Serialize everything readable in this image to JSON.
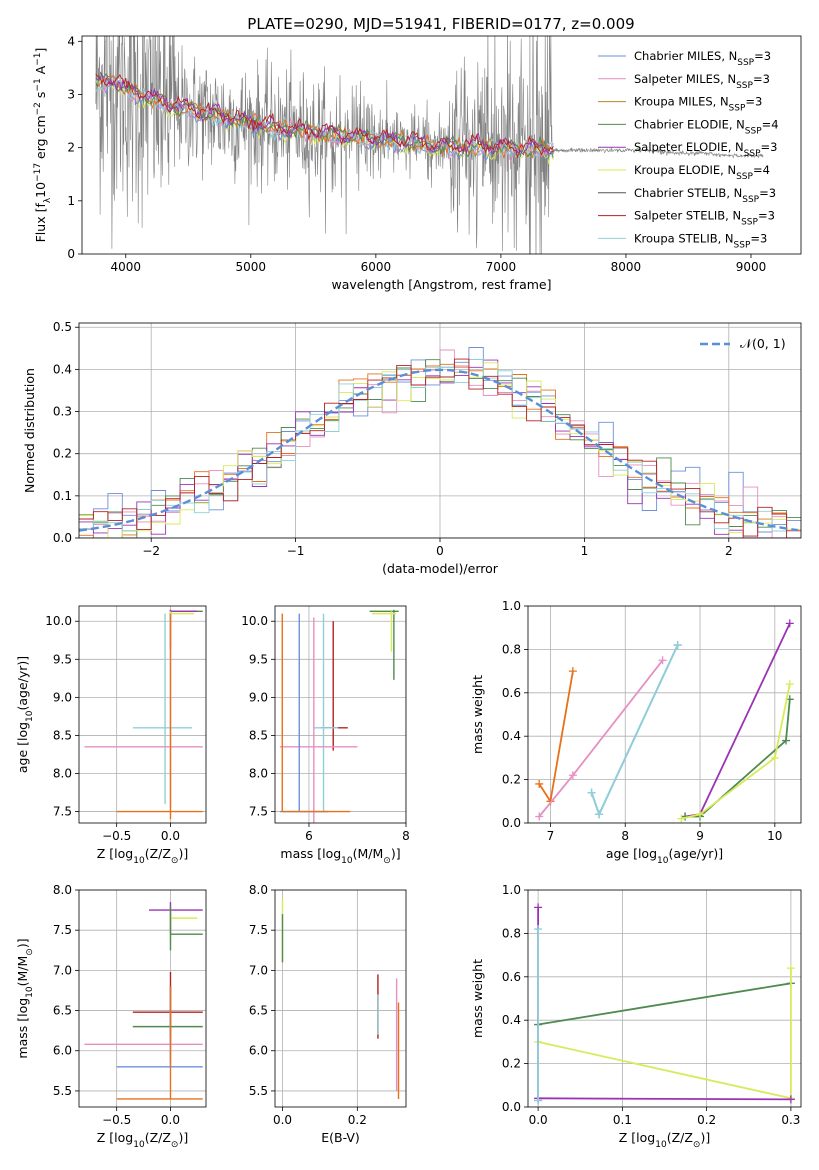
{
  "title": "PLATE=0290, MJD=51941, FIBERID=0177, z=0.009",
  "colors": {
    "chabrier_miles": "#6f8fdc",
    "salpeter_miles": "#e68fc2",
    "kroupa_miles": "#b8862b",
    "chabrier_elodie": "#4f8a4f",
    "salpeter_elodie": "#9a34b4",
    "kroupa_elodie": "#d8ea5a",
    "chabrier_stelib": "#555555",
    "salpeter_stelib": "#b52020",
    "kroupa_stelib": "#8fd0d8",
    "data": "#808080",
    "orange": "#e8701a",
    "gaussian": "#5a8fd8"
  },
  "chart_data": [
    {
      "id": "spectrum",
      "type": "line",
      "title": "PLATE=0290, MJD=51941, FIBERID=0177, z=0.009",
      "xlabel": "wavelength [Angstrom, rest frame]",
      "ylabel_parts": {
        "a": "Flux [f",
        "sub": "λ",
        "b": "10",
        "sup1": "−17",
        "c": " erg cm",
        "sup2": "−2",
        "d": " s",
        "sup3": "−1",
        "e": " A",
        "sup4": "−1",
        "f": "]"
      },
      "xlim": [
        3650,
        9400
      ],
      "ylim": [
        0,
        4.1
      ],
      "xticks": [
        4000,
        5000,
        6000,
        7000,
        8000,
        9000
      ],
      "yticks": [
        0,
        1,
        2,
        3,
        4
      ],
      "legend_placement": "top-right",
      "legend": [
        {
          "label": "Chabrier MILES, N",
          "sub": "SSP",
          "suffix": "=3",
          "color_key": "chabrier_miles"
        },
        {
          "label": "Salpeter MILES, N",
          "sub": "SSP",
          "suffix": "=3",
          "color_key": "salpeter_miles"
        },
        {
          "label": "Kroupa MILES, N",
          "sub": "SSP",
          "suffix": "=3",
          "color_key": "kroupa_miles"
        },
        {
          "label": "Chabrier ELODIE, N",
          "sub": "SSP",
          "suffix": "=4",
          "color_key": "chabrier_elodie"
        },
        {
          "label": "Salpeter ELODIE, N",
          "sub": "SSP",
          "suffix": "=3",
          "color_key": "salpeter_elodie"
        },
        {
          "label": "Kroupa ELODIE, N",
          "sub": "SSP",
          "suffix": "=4",
          "color_key": "kroupa_elodie"
        },
        {
          "label": "Chabrier STELIB, N",
          "sub": "SSP",
          "suffix": "=3",
          "color_key": "chabrier_stelib"
        },
        {
          "label": "Salpeter STELIB, N",
          "sub": "SSP",
          "suffix": "=3",
          "color_key": "salpeter_stelib"
        },
        {
          "label": "Kroupa STELIB, N",
          "sub": "SSP",
          "suffix": "=3",
          "color_key": "kroupa_stelib"
        }
      ],
      "continuum": {
        "x": [
          3760,
          3900,
          4000,
          4200,
          4400,
          4600,
          4800,
          5000,
          5200,
          5400,
          5600,
          5800,
          6000,
          6200,
          6400,
          6600,
          6800,
          7000,
          7200,
          7400,
          7600,
          7800,
          8000,
          8200,
          8400,
          8600,
          8800,
          9000,
          9100
        ],
        "y": [
          3.2,
          3.25,
          3.1,
          2.9,
          2.75,
          2.65,
          2.55,
          2.45,
          2.35,
          2.3,
          2.25,
          2.2,
          2.15,
          2.1,
          2.05,
          2.0,
          2.0,
          2.0,
          1.95,
          1.95,
          1.95,
          1.95,
          1.95,
          1.95,
          1.9,
          1.9,
          1.85,
          1.85,
          1.85
        ]
      },
      "noisy_range": [
        3760,
        7420
      ]
    },
    {
      "id": "residuals",
      "type": "line",
      "xlabel": "(data-model)/error",
      "ylabel": "Normed distribution",
      "xlim": [
        -2.5,
        2.5
      ],
      "ylim": [
        0,
        0.51
      ],
      "xticks": [
        -2,
        -1,
        0,
        1,
        2
      ],
      "yticks": [
        0.0,
        0.1,
        0.2,
        0.3,
        0.4,
        0.5
      ],
      "legend_label": "𝒩(0, 1)",
      "legend_placement": "top-right",
      "bin_width": 0.1
    },
    {
      "id": "age_vs_Z",
      "type": "scatter",
      "xlabel_parts": {
        "a": "Z [log",
        "sub": "10",
        "b": "(Z/Z",
        "sub2": "⊙",
        "c": ")]"
      },
      "ylabel_parts": {
        "a": "age  [log",
        "sub": "10",
        "b": "(age/yr)]"
      },
      "xlim": [
        -0.85,
        0.33
      ],
      "ylim": [
        7.35,
        10.2
      ],
      "xticks": [
        -0.5,
        0.0
      ],
      "yticks": [
        7.5,
        8.0,
        8.5,
        9.0,
        9.5,
        10.0
      ],
      "errorbars": [
        {
          "x": 0.0,
          "y": 10.13,
          "xerr": [
            0.0,
            0.3
          ],
          "yerr": [
            0.45,
            0.02
          ],
          "color_key": "chabrier_elodie"
        },
        {
          "x": 0.0,
          "y": 10.13,
          "xerr": [
            0.0,
            0.25
          ],
          "yerr": [
            0.5,
            0.02
          ],
          "color_key": "salpeter_elodie"
        },
        {
          "x": 0.0,
          "y": 10.1,
          "xerr": [
            0.0,
            0.22
          ],
          "yerr": [
            0.4,
            0.03
          ],
          "color_key": "kroupa_elodie"
        },
        {
          "x": -0.05,
          "y": 8.6,
          "xerr": [
            0.3,
            0.25
          ],
          "yerr": [
            1.0,
            1.5
          ],
          "color_key": "kroupa_stelib"
        },
        {
          "x": 0.0,
          "y": 8.35,
          "xerr": [
            0.8,
            0.3
          ],
          "yerr": [
            0.8,
            1.7
          ],
          "color_key": "salpeter_miles"
        },
        {
          "x": 0.0,
          "y": 7.5,
          "xerr": [
            0.5,
            0.3
          ],
          "yerr": [
            0.1,
            2.6
          ],
          "color_key": "orange"
        }
      ]
    },
    {
      "id": "age_vs_mass",
      "type": "scatter",
      "xlabel_parts": {
        "a": "mass [log",
        "sub": "10",
        "b": "(M/M",
        "sub2": "⊙",
        "c": ")]"
      },
      "xlim": [
        5.3,
        8.0
      ],
      "ylim": [
        7.35,
        10.2
      ],
      "xticks": [
        6,
        8
      ],
      "yticks": [
        7.5,
        8.0,
        8.5,
        9.0,
        9.5,
        10.0
      ],
      "errorbars": [
        {
          "x": 7.75,
          "y": 10.13,
          "xerr": [
            0.5,
            0.1
          ],
          "yerr": [
            0.9,
            0.02
          ],
          "color_key": "chabrier_elodie"
        },
        {
          "x": 7.7,
          "y": 10.1,
          "xerr": [
            0.4,
            0.1
          ],
          "yerr": [
            0.5,
            0.03
          ],
          "color_key": "kroupa_elodie"
        },
        {
          "x": 6.5,
          "y": 8.6,
          "xerr": [
            0.25,
            0.3
          ],
          "yerr": [
            0.3,
            1.4
          ],
          "color_key": "salpeter_stelib"
        },
        {
          "x": 6.3,
          "y": 8.6,
          "xerr": [
            0.2,
            0.3
          ],
          "yerr": [
            1.1,
            1.5
          ],
          "color_key": "kroupa_stelib"
        },
        {
          "x": 6.1,
          "y": 8.35,
          "xerr": [
            0.7,
            0.9
          ],
          "yerr": [
            1.0,
            1.7
          ],
          "color_key": "salpeter_miles"
        },
        {
          "x": 5.8,
          "y": 7.5,
          "xerr": [
            0.4,
            0.6
          ],
          "yerr": [
            0.0,
            2.6
          ],
          "color_key": "chabrier_miles"
        },
        {
          "x": 5.45,
          "y": 7.5,
          "xerr": [
            0.0,
            1.4
          ],
          "yerr": [
            0.0,
            2.6
          ],
          "color_key": "orange"
        }
      ]
    },
    {
      "id": "massweight_vs_age",
      "type": "line",
      "xlabel_parts": {
        "a": "age  [log",
        "sub": "10",
        "b": "(age/yr)]"
      },
      "ylabel": "mass weight",
      "xlim": [
        6.7,
        10.35
      ],
      "ylim": [
        0,
        1.0
      ],
      "xticks": [
        7,
        8,
        9,
        10
      ],
      "yticks": [
        0.0,
        0.2,
        0.4,
        0.6,
        0.8,
        1.0
      ],
      "series": [
        {
          "color_key": "orange",
          "x": [
            6.85,
            7.0,
            7.3
          ],
          "y": [
            0.18,
            0.1,
            0.7
          ]
        },
        {
          "color_key": "salpeter_miles",
          "x": [
            6.85,
            7.3,
            8.5
          ],
          "y": [
            0.03,
            0.22,
            0.75
          ]
        },
        {
          "color_key": "chabrier_miles",
          "x": [
            7.55,
            7.65,
            8.7
          ],
          "y": [
            0.14,
            0.04,
            0.82
          ]
        },
        {
          "color_key": "kroupa_stelib",
          "x": [
            7.55,
            7.65,
            8.7
          ],
          "y": [
            0.14,
            0.04,
            0.82
          ]
        },
        {
          "color_key": "salpeter_elodie",
          "x": [
            8.8,
            9.0,
            10.2
          ],
          "y": [
            0.03,
            0.04,
            0.92
          ]
        },
        {
          "color_key": "chabrier_elodie",
          "x": [
            8.8,
            9.0,
            10.15,
            10.2
          ],
          "y": [
            0.03,
            0.03,
            0.38,
            0.57
          ]
        },
        {
          "color_key": "kroupa_elodie",
          "x": [
            8.75,
            9.0,
            10.0,
            10.2
          ],
          "y": [
            0.02,
            0.04,
            0.3,
            0.64
          ]
        }
      ]
    },
    {
      "id": "mass_vs_Z",
      "type": "scatter",
      "xlabel_parts": {
        "a": "Z [log",
        "sub": "10",
        "b": "(Z/Z",
        "sub2": "⊙",
        "c": ")]"
      },
      "ylabel_parts": {
        "a": "mass [log",
        "sub": "10",
        "b": "(M/M",
        "sub2": "⊙",
        "c": ")]"
      },
      "xlim": [
        -0.85,
        0.33
      ],
      "ylim": [
        5.3,
        8.0
      ],
      "xticks": [
        -0.5,
        0.0
      ],
      "yticks": [
        5.5,
        6.0,
        6.5,
        7.0,
        7.5,
        8.0
      ],
      "errorbars": [
        {
          "x": 0.0,
          "y": 7.75,
          "xerr": [
            0.2,
            0.3
          ],
          "yerr": [
            0.3,
            0.1
          ],
          "color_key": "salpeter_elodie"
        },
        {
          "x": 0.0,
          "y": 7.65,
          "xerr": [
            0.0,
            0.25
          ],
          "yerr": [
            0.3,
            0.1
          ],
          "color_key": "kroupa_elodie"
        },
        {
          "x": 0.0,
          "y": 7.45,
          "xerr": [
            0.0,
            0.3
          ],
          "yerr": [
            0.2,
            0.35
          ],
          "color_key": "chabrier_elodie"
        },
        {
          "x": 0.0,
          "y": 6.48,
          "xerr": [
            0.35,
            0.3
          ],
          "yerr": [
            0.3,
            0.5
          ],
          "color_key": "salpeter_stelib"
        },
        {
          "x": 0.0,
          "y": 6.3,
          "xerr": [
            0.35,
            0.3
          ],
          "yerr": [
            0.2,
            0.5
          ],
          "color_key": "chabrier_elodie"
        },
        {
          "x": 0.0,
          "y": 6.08,
          "xerr": [
            0.8,
            0.3
          ],
          "yerr": [
            0.2,
            0.6
          ],
          "color_key": "salpeter_miles"
        },
        {
          "x": 0.0,
          "y": 5.8,
          "xerr": [
            0.5,
            0.3
          ],
          "yerr": [
            0.0,
            1.0
          ],
          "color_key": "chabrier_miles"
        },
        {
          "x": 0.0,
          "y": 5.4,
          "xerr": [
            0.5,
            0.3
          ],
          "yerr": [
            0.0,
            1.4
          ],
          "color_key": "orange"
        }
      ]
    },
    {
      "id": "mass_vs_EBV",
      "type": "scatter",
      "xlabel": "E(B-V)",
      "xlim": [
        -0.02,
        0.33
      ],
      "ylim": [
        5.3,
        8.0
      ],
      "xticks": [
        0.0,
        0.2
      ],
      "yticks": [
        5.5,
        6.0,
        6.5,
        7.0,
        7.5,
        8.0
      ],
      "errorbars": [
        {
          "x": 0.0,
          "y": 7.5,
          "xerr": [
            0,
            0
          ],
          "yerr": [
            0.4,
            0.4
          ],
          "color_key": "kroupa_elodie"
        },
        {
          "x": 0.0,
          "y": 7.4,
          "xerr": [
            0,
            0
          ],
          "yerr": [
            0.3,
            0.3
          ],
          "color_key": "chabrier_elodie"
        },
        {
          "x": 0.255,
          "y": 6.55,
          "xerr": [
            0,
            0
          ],
          "yerr": [
            0.4,
            0.4
          ],
          "color_key": "salpeter_stelib"
        },
        {
          "x": 0.255,
          "y": 6.45,
          "xerr": [
            0,
            0
          ],
          "yerr": [
            0.25,
            0.25
          ],
          "color_key": "kroupa_stelib"
        },
        {
          "x": 0.305,
          "y": 6.2,
          "xerr": [
            0,
            0
          ],
          "yerr": [
            0.7,
            0.7
          ],
          "color_key": "salpeter_miles"
        },
        {
          "x": 0.31,
          "y": 6.0,
          "xerr": [
            0,
            0
          ],
          "yerr": [
            0.6,
            0.6
          ],
          "color_key": "orange"
        }
      ]
    },
    {
      "id": "massweight_vs_Z",
      "type": "line",
      "xlabel_parts": {
        "a": "Z [log",
        "sub": "10",
        "b": "(Z/Z",
        "sub2": "⊙",
        "c": ")]"
      },
      "ylabel": "mass weight",
      "xlim": [
        -0.012,
        0.312
      ],
      "ylim": [
        0,
        1.0
      ],
      "xticks": [
        0.0,
        0.1,
        0.2,
        0.3
      ],
      "yticks": [
        0.0,
        0.2,
        0.4,
        0.6,
        0.8,
        1.0
      ],
      "series": [
        {
          "color_key": "chabrier_elodie",
          "x": [
            0.0,
            0.3
          ],
          "y": [
            0.38,
            0.57
          ]
        },
        {
          "color_key": "kroupa_elodie",
          "x": [
            0.0,
            0.3,
            0.3
          ],
          "y": [
            0.3,
            0.04,
            0.64
          ]
        },
        {
          "color_key": "salpeter_elodie",
          "x": [
            0.0,
            0.3
          ],
          "y": [
            0.04,
            0.035
          ]
        },
        {
          "color_key": "salpeter_elodie",
          "x": [
            0.0,
            0.0
          ],
          "y": [
            0.03,
            0.92
          ]
        },
        {
          "color_key": "kroupa_stelib",
          "x": [
            0.0,
            0.0
          ],
          "y": [
            0.03,
            0.82
          ]
        }
      ]
    }
  ]
}
